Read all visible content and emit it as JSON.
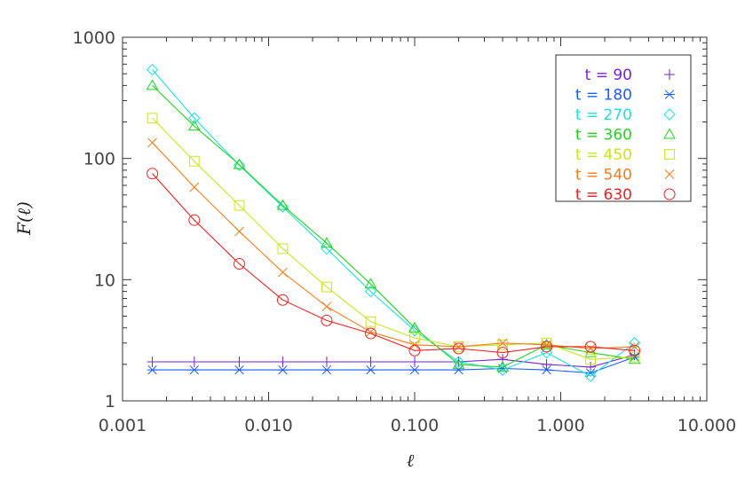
{
  "chart_data": {
    "type": "line",
    "title": "",
    "xlabel": "ℓ",
    "ylabel": "F(ℓ)",
    "x_scale": "log",
    "y_scale": "log",
    "xlim": [
      0.001,
      10
    ],
    "ylim": [
      1,
      1000
    ],
    "grid": false,
    "legend_position": "top-right",
    "x_ticks": [
      {
        "value": 0.001,
        "label": "0.001"
      },
      {
        "value": 0.01,
        "label": "0.010"
      },
      {
        "value": 0.1,
        "label": "0.100"
      },
      {
        "value": 1,
        "label": "1.000"
      },
      {
        "value": 10,
        "label": "10.000"
      }
    ],
    "y_ticks": [
      {
        "value": 1,
        "label": "1"
      },
      {
        "value": 10,
        "label": "10"
      },
      {
        "value": 100,
        "label": "100"
      },
      {
        "value": 1000,
        "label": "1000"
      }
    ],
    "x": [
      0.0016,
      0.0031,
      0.0063,
      0.0125,
      0.025,
      0.05,
      0.1,
      0.2,
      0.4,
      0.8,
      1.6,
      3.2
    ],
    "series": [
      {
        "name": "t = 90",
        "marker": "plus",
        "color": "#7a1fd6",
        "values": [
          2.1,
          2.1,
          2.1,
          2.1,
          2.1,
          2.1,
          2.1,
          2.1,
          2.2,
          2.0,
          1.9,
          2.4
        ]
      },
      {
        "name": "t = 180",
        "marker": "asterisk",
        "color": "#1a5cff",
        "values": [
          1.8,
          1.8,
          1.8,
          1.8,
          1.8,
          1.8,
          1.8,
          1.8,
          1.85,
          1.8,
          1.7,
          2.3
        ]
      },
      {
        "name": "t = 270",
        "marker": "diamond",
        "color": "#1ee0e0",
        "values": [
          540,
          215,
          88,
          40,
          18,
          8,
          3.8,
          2.1,
          1.8,
          2.5,
          1.6,
          3.0
        ]
      },
      {
        "name": "t = 360",
        "marker": "triangle",
        "color": "#22d422",
        "values": [
          400,
          185,
          89,
          41,
          20,
          9.2,
          4.0,
          2.0,
          1.9,
          2.9,
          2.5,
          2.2
        ]
      },
      {
        "name": "t = 450",
        "marker": "square",
        "color": "#c8e61e",
        "values": [
          215,
          95,
          41,
          18,
          8.7,
          4.5,
          3.3,
          2.8,
          2.9,
          3.0,
          2.2,
          2.3
        ]
      },
      {
        "name": "t = 540",
        "marker": "x",
        "color": "#ff7a1a",
        "values": [
          135,
          58,
          25,
          11.5,
          6.0,
          3.7,
          2.9,
          2.8,
          3.0,
          2.9,
          2.7,
          2.8
        ]
      },
      {
        "name": "t = 630",
        "marker": "circle",
        "color": "#ee2222",
        "values": [
          75,
          31,
          13.5,
          6.8,
          4.6,
          3.6,
          2.6,
          2.7,
          2.5,
          2.8,
          2.8,
          2.6
        ]
      }
    ]
  }
}
